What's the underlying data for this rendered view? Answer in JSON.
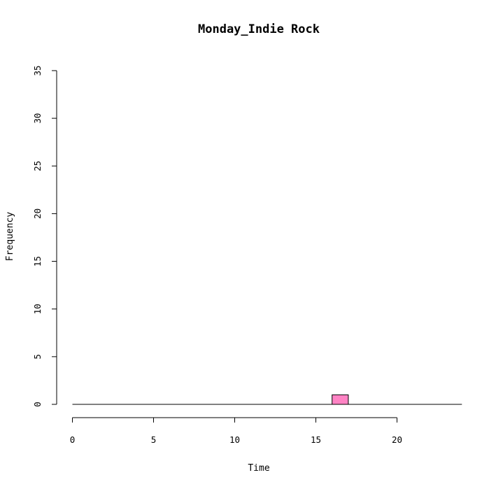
{
  "chart_data": {
    "type": "bar",
    "title": "Monday_Indie Rock",
    "xlabel": "Time",
    "ylabel": "Frequency",
    "xlim": [
      0,
      24
    ],
    "ylim": [
      0,
      35
    ],
    "x_ticks": [
      0,
      5,
      10,
      15,
      20
    ],
    "y_ticks": [
      0,
      5,
      10,
      15,
      20,
      25,
      30,
      35
    ],
    "bins": [
      {
        "start": 0,
        "end": 1,
        "count": 0
      },
      {
        "start": 1,
        "end": 2,
        "count": 0
      },
      {
        "start": 2,
        "end": 3,
        "count": 0
      },
      {
        "start": 3,
        "end": 4,
        "count": 0
      },
      {
        "start": 4,
        "end": 5,
        "count": 0
      },
      {
        "start": 5,
        "end": 6,
        "count": 0
      },
      {
        "start": 6,
        "end": 7,
        "count": 0
      },
      {
        "start": 7,
        "end": 8,
        "count": 0
      },
      {
        "start": 8,
        "end": 9,
        "count": 0
      },
      {
        "start": 9,
        "end": 10,
        "count": 0
      },
      {
        "start": 10,
        "end": 11,
        "count": 0
      },
      {
        "start": 11,
        "end": 12,
        "count": 0
      },
      {
        "start": 12,
        "end": 13,
        "count": 0
      },
      {
        "start": 13,
        "end": 14,
        "count": 0
      },
      {
        "start": 14,
        "end": 15,
        "count": 0
      },
      {
        "start": 15,
        "end": 16,
        "count": 0
      },
      {
        "start": 16,
        "end": 17,
        "count": 1
      },
      {
        "start": 17,
        "end": 18,
        "count": 0
      },
      {
        "start": 18,
        "end": 19,
        "count": 0
      },
      {
        "start": 19,
        "end": 20,
        "count": 0
      },
      {
        "start": 20,
        "end": 21,
        "count": 0
      },
      {
        "start": 21,
        "end": 22,
        "count": 0
      },
      {
        "start": 22,
        "end": 23,
        "count": 0
      },
      {
        "start": 23,
        "end": 24,
        "count": 0
      }
    ],
    "bar_color": "#FF83C4",
    "grid": false
  }
}
